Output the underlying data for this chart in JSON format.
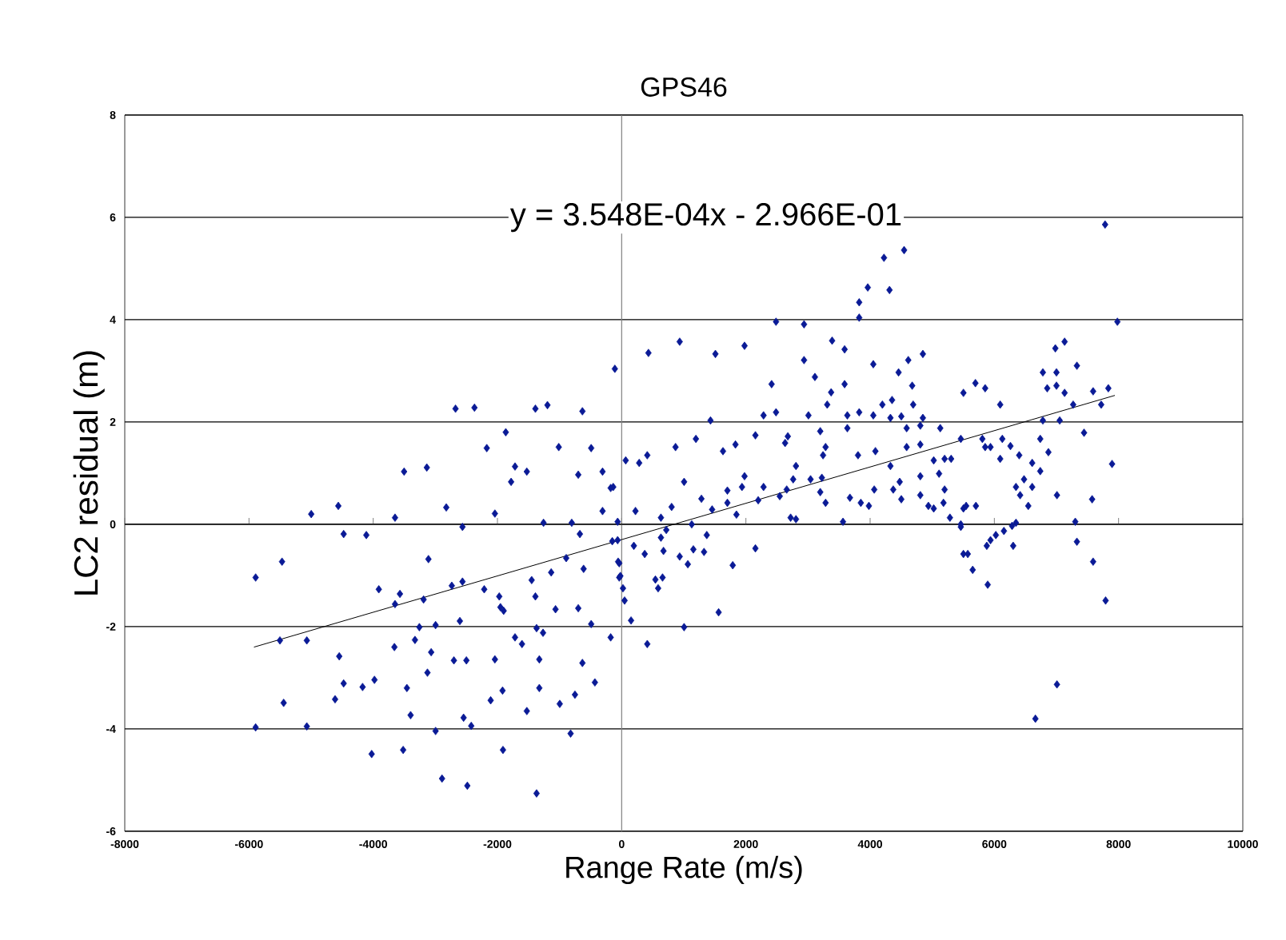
{
  "chart_data": {
    "type": "scatter",
    "title": "GPS46",
    "xlabel": "Range Rate (m/s)",
    "ylabel": "LC2 residual (m)",
    "annotations": [
      "y = 3.548E-04x - 2.966E-01"
    ],
    "xlim": [
      -8000,
      10000
    ],
    "ylim": [
      -6,
      8
    ],
    "xticks": [
      -8000,
      -6000,
      -4000,
      -2000,
      0,
      2000,
      4000,
      6000,
      8000,
      10000
    ],
    "yticks": [
      -6,
      -4,
      -2,
      0,
      2,
      4,
      6,
      8
    ],
    "grid": "y",
    "marker": "diamond",
    "series": [
      {
        "color": "#0a1a96",
        "x": [
          -5893,
          -5893,
          -5468,
          -4998,
          -4562,
          -4476,
          -4111,
          -3649,
          -3503,
          -3137,
          -2824,
          -2563,
          -2675,
          -2370,
          -1866,
          -2172,
          -1717,
          -1780,
          -1527,
          -2041,
          -1389,
          -1195,
          -632,
          -1013,
          -491,
          -699,
          -308,
          -177,
          -308,
          -65,
          -1258,
          -804,
          -673,
          -110,
          -151,
          -893,
          -613,
          -1135,
          -1449,
          -3111,
          -3910,
          -3570,
          -3649,
          -3189,
          -2735,
          -2563,
          -2213,
          -1971,
          -1952,
          -1900,
          -1389,
          -1065,
          -699,
          -491,
          -177,
          -57,
          -39,
          -5502,
          -5069,
          -3257,
          -2996,
          -2605,
          -3328,
          -3659,
          -3067,
          -1717,
          -1605,
          -1370,
          -1266,
          -4547,
          -2701,
          -2500,
          -2041,
          -1326,
          -632,
          -4476,
          -4171,
          -3980,
          -3458,
          -3127,
          -5442,
          -4614,
          -3398,
          -2109,
          -1918,
          -1326,
          -997,
          -752,
          -431,
          -1527,
          -5069,
          -4025,
          -3518,
          -2996,
          -2545,
          -2422,
          -1911,
          -822,
          -2892,
          -2485,
          -1370,
          431,
          934,
          1509,
          1978,
          2485,
          2936,
          3388,
          3589,
          2414,
          2936,
          3111,
          4051,
          4458,
          4614,
          4849,
          4677,
          3589,
          3372,
          1430,
          2284,
          2485,
          3007,
          3309,
          3633,
          3824,
          4051,
          4197,
          4353,
          4693,
          4849,
          4327,
          4502,
          5502,
          65,
          282,
          412,
          867,
          1195,
          1631,
          1832,
          2153,
          2675,
          2631,
          3197,
          3633,
          4588,
          4808,
          5129,
          3283,
          3242,
          3805,
          4085,
          4588,
          4808,
          4327,
          5024,
          5199,
          5304,
          5110,
          4808,
          5199,
          4476,
          4372,
          4502,
          4808,
          4938,
          5181,
          5024,
          5285,
          5460,
          5502,
          -136,
          222,
          632,
          804,
          1005,
          1284,
          1456,
          1702,
          1702,
          1848,
          1978,
          1937,
          2198,
          2284,
          2545,
          2657,
          2761,
          2806,
          2720,
          2806,
          3041,
          3197,
          3223,
          3283,
          3563,
          3675,
          3850,
          3980,
          4066,
          -65,
          196,
          371,
          632,
          673,
          718,
          934,
          1128,
          1154,
          1326,
          1370,
          2153,
          1788,
          1065,
          -39,
          -21,
          21,
          47,
          543,
          587,
          658,
          151,
          1005,
          1561,
          412,
          5502,
          4223,
          4547,
          3962,
          4312,
          3824,
          3824,
          7783,
          7981,
          6982,
          7131,
          7329,
          6781,
          7000,
          6851,
          7000,
          7131,
          7590,
          7835,
          7269,
          7720,
          5695,
          5852,
          6094,
          6781,
          7052,
          7444,
          5460,
          5807,
          5852,
          5938,
          6128,
          6259,
          6400,
          6094,
          6739,
          6870,
          6609,
          6739,
          7895,
          6478,
          6348,
          6609,
          6415,
          6546,
          7008,
          7574,
          5546,
          5703,
          5460,
          6348,
          6285,
          7303,
          6154,
          6024,
          5938,
          5878,
          6303,
          7329,
          5572,
          5651,
          5893,
          7590,
          7791,
          7008,
          6661
        ],
        "values": [
          -1.04,
          -3.97,
          -0.73,
          0.2,
          0.36,
          -0.19,
          -0.21,
          0.13,
          1.03,
          1.11,
          0.33,
          -0.05,
          2.26,
          2.28,
          1.8,
          1.49,
          1.13,
          0.83,
          1.03,
          0.21,
          2.26,
          2.33,
          2.21,
          1.51,
          1.49,
          0.97,
          1.03,
          0.71,
          0.26,
          0.05,
          0.03,
          0.03,
          -0.19,
          3.04,
          -0.33,
          -0.66,
          -0.87,
          -0.94,
          -1.09,
          -0.68,
          -1.27,
          -1.36,
          -1.56,
          -1.47,
          -1.2,
          -1.12,
          -1.27,
          -1.41,
          -1.62,
          -1.69,
          -1.41,
          -1.66,
          -1.64,
          -1.95,
          -2.21,
          -0.73,
          -1.04,
          -2.27,
          -2.27,
          -2.01,
          -1.97,
          -1.89,
          -2.26,
          -2.4,
          -2.5,
          -2.21,
          -2.34,
          -2.03,
          -2.12,
          -2.58,
          -2.66,
          -2.66,
          -2.64,
          -2.64,
          -2.71,
          -3.11,
          -3.18,
          -3.04,
          -3.2,
          -2.9,
          -3.49,
          -3.42,
          -3.73,
          -3.44,
          -3.25,
          -3.2,
          -3.51,
          -3.33,
          -3.09,
          -3.65,
          -3.95,
          -4.49,
          -4.41,
          -4.04,
          -3.78,
          -3.94,
          -4.41,
          -4.09,
          -4.97,
          -5.11,
          -5.26,
          3.35,
          3.57,
          3.33,
          3.49,
          3.96,
          3.91,
          3.59,
          3.42,
          2.74,
          3.21,
          2.88,
          3.13,
          2.97,
          3.21,
          3.33,
          2.71,
          2.74,
          2.58,
          2.03,
          2.13,
          2.19,
          2.13,
          2.34,
          2.13,
          2.19,
          2.13,
          2.34,
          2.43,
          2.34,
          2.08,
          2.08,
          2.11,
          2.57,
          1.25,
          1.2,
          1.35,
          1.51,
          1.67,
          1.43,
          1.56,
          1.74,
          1.72,
          1.59,
          1.82,
          1.88,
          1.88,
          1.93,
          1.88,
          1.51,
          1.35,
          1.35,
          1.43,
          1.51,
          1.56,
          1.14,
          1.25,
          1.28,
          1.28,
          0.99,
          0.94,
          0.68,
          0.83,
          0.68,
          0.49,
          0.57,
          0.36,
          0.42,
          0.31,
          0.13,
          0.0,
          0.31,
          0.73,
          0.26,
          0.13,
          0.34,
          0.83,
          0.5,
          0.29,
          0.66,
          0.42,
          0.19,
          0.94,
          0.73,
          0.47,
          0.73,
          0.55,
          0.68,
          0.88,
          1.14,
          0.13,
          0.1,
          0.88,
          0.63,
          0.91,
          0.42,
          0.05,
          0.52,
          0.42,
          0.36,
          0.68,
          -0.31,
          -0.42,
          -0.58,
          -0.26,
          -0.52,
          -0.11,
          -0.63,
          0.0,
          -0.49,
          -0.54,
          -0.21,
          -0.47,
          -0.8,
          -0.78,
          -0.76,
          -1.01,
          -1.25,
          -1.49,
          -1.08,
          -1.25,
          -1.04,
          -1.88,
          -2.01,
          -1.72,
          -2.34,
          -0.58,
          5.21,
          5.36,
          4.63,
          4.58,
          4.34,
          4.04,
          5.86,
          3.96,
          3.44,
          3.57,
          3.1,
          2.97,
          2.97,
          2.66,
          2.71,
          2.57,
          2.6,
          2.66,
          2.34,
          2.34,
          2.76,
          2.66,
          2.34,
          2.03,
          2.03,
          1.79,
          1.67,
          1.67,
          1.51,
          1.51,
          1.67,
          1.53,
          1.35,
          1.28,
          1.67,
          1.41,
          1.2,
          1.04,
          1.18,
          0.88,
          0.73,
          0.73,
          0.57,
          0.36,
          0.57,
          0.49,
          0.36,
          0.36,
          -0.05,
          0.03,
          -0.03,
          0.05,
          -0.13,
          -0.21,
          -0.31,
          -0.42,
          -0.42,
          -0.34,
          -0.58,
          -0.89,
          -1.18,
          -0.73,
          -1.49,
          -3.13,
          -3.8
        ]
      },
      {
        "type": "line",
        "color": "#000000",
        "marker": "none",
        "line_style": "solid",
        "x": [
          -5920,
          7940
        ],
        "values": [
          -2.4,
          2.52
        ]
      }
    ]
  }
}
